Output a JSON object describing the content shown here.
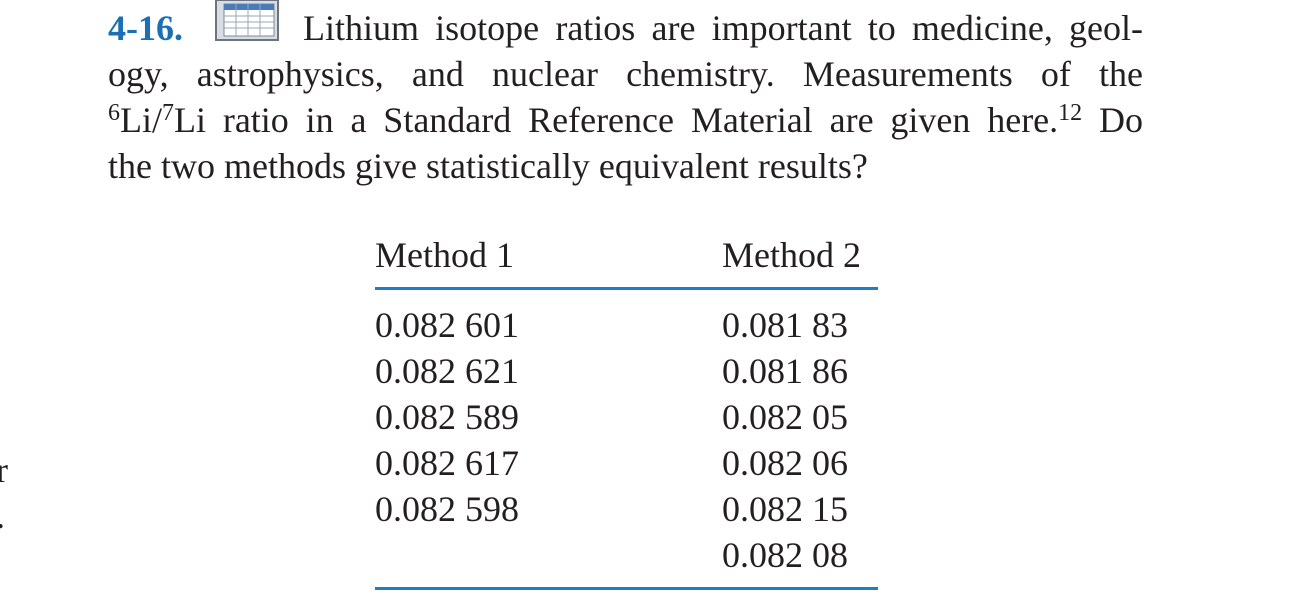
{
  "problem": {
    "number": "4-16.",
    "lines": [
      [
        {
          "text": "Lithium isotope ratios are important to medicine, geol-"
        }
      ],
      [
        {
          "text": "ogy, astrophysics, and nuclear chemistry. Measurements of the"
        }
      ],
      [
        {
          "text": "6",
          "sup": true
        },
        {
          "text": "Li/"
        },
        {
          "text": "7",
          "sup": true
        },
        {
          "text": "Li ratio in a Standard Reference Material are given here."
        },
        {
          "text": "12",
          "sup": true
        },
        {
          "text": " Do"
        }
      ],
      [
        {
          "text": "the two methods give statistically equivalent results?"
        }
      ]
    ]
  },
  "table": {
    "columns": [
      {
        "header": "Method 1",
        "values": [
          "0.082 601",
          "0.082 621",
          "0.082 589",
          "0.082 617",
          "0.082 598"
        ]
      },
      {
        "header": "Method 2",
        "values": [
          "0.081 83",
          "0.081 86",
          "0.082 05",
          "0.082 06",
          "0.082 15",
          "0.082 08"
        ]
      }
    ]
  },
  "margin_fragments": [
    "r",
    "."
  ]
}
